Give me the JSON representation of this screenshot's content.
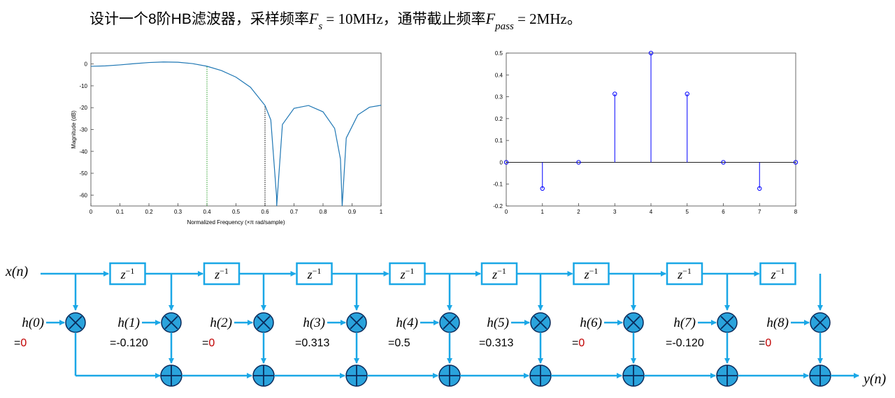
{
  "title": [
    "设计一个8阶HB滤波器，采样频率",
    "F",
    "s",
    " = 10MHz，通带截止频率",
    "F",
    "pass",
    " = 2MHz。"
  ],
  "chart_data": [
    {
      "type": "line",
      "xlabel": "Normalized Frequency  (×π rad/sample)",
      "ylabel": "Magnitude (dB)",
      "color": "#1f77b4",
      "x": [
        0,
        0.05,
        0.1,
        0.15,
        0.2,
        0.25,
        0.3,
        0.35,
        0.4,
        0.45,
        0.5,
        0.55,
        0.6,
        0.62,
        0.64,
        0.6403,
        0.66,
        0.7,
        0.75,
        0.8,
        0.84,
        0.86,
        0.866,
        0.88,
        0.92,
        0.96,
        1.0
      ],
      "values": [
        -1.05,
        -0.87,
        -0.41,
        0.17,
        0.67,
        0.92,
        0.8,
        0.18,
        -1.04,
        -3.01,
        -6.02,
        -10.66,
        -18.98,
        -25.6,
        -61,
        -65,
        -27.7,
        -20.3,
        -19.0,
        -21.9,
        -29.5,
        -43.5,
        -65,
        -33.9,
        -23.3,
        -19.8,
        -18.9
      ],
      "xlim": [
        0,
        1
      ],
      "ylim": [
        -65,
        5
      ],
      "xticks": [
        0,
        0.1,
        0.2,
        0.3,
        0.4,
        0.5,
        0.6,
        0.7,
        0.8,
        0.9,
        1
      ],
      "yticks": [
        0,
        -10,
        -20,
        -30,
        -40,
        -50,
        -60
      ],
      "vlines": [
        {
          "x": 0.4,
          "color": "#2ca02c"
        },
        {
          "x": 0.6,
          "color": "#000000"
        }
      ]
    },
    {
      "type": "stem",
      "color": "#0000ff",
      "x": [
        0,
        1,
        2,
        3,
        4,
        5,
        6,
        7,
        8
      ],
      "values": [
        0,
        -0.12,
        0,
        0.313,
        0.5,
        0.313,
        0,
        -0.12,
        0
      ],
      "xlim": [
        0,
        8
      ],
      "ylim": [
        -0.2,
        0.5
      ],
      "xticks": [
        0,
        1,
        2,
        3,
        4,
        5,
        6,
        7,
        8
      ],
      "yticks": [
        0.5,
        0.4,
        0.3,
        0.2,
        0.1,
        0,
        -0.1,
        -0.2
      ]
    }
  ],
  "diagram": {
    "input": "x(n)",
    "output": "y(n)",
    "delay": "z",
    "delay_power": "−1",
    "equals": "=",
    "taps": [
      {
        "name": "h(0)",
        "value": "0"
      },
      {
        "name": "h(1)",
        "value": "-0.120"
      },
      {
        "name": "h(2)",
        "value": "0"
      },
      {
        "name": "h(3)",
        "value": "0.313"
      },
      {
        "name": "h(4)",
        "value": "0.5"
      },
      {
        "name": "h(5)",
        "value": "0.313"
      },
      {
        "name": "h(6)",
        "value": "0"
      },
      {
        "name": "h(7)",
        "value": "-0.120"
      },
      {
        "name": "h(8)",
        "value": "0"
      }
    ]
  }
}
